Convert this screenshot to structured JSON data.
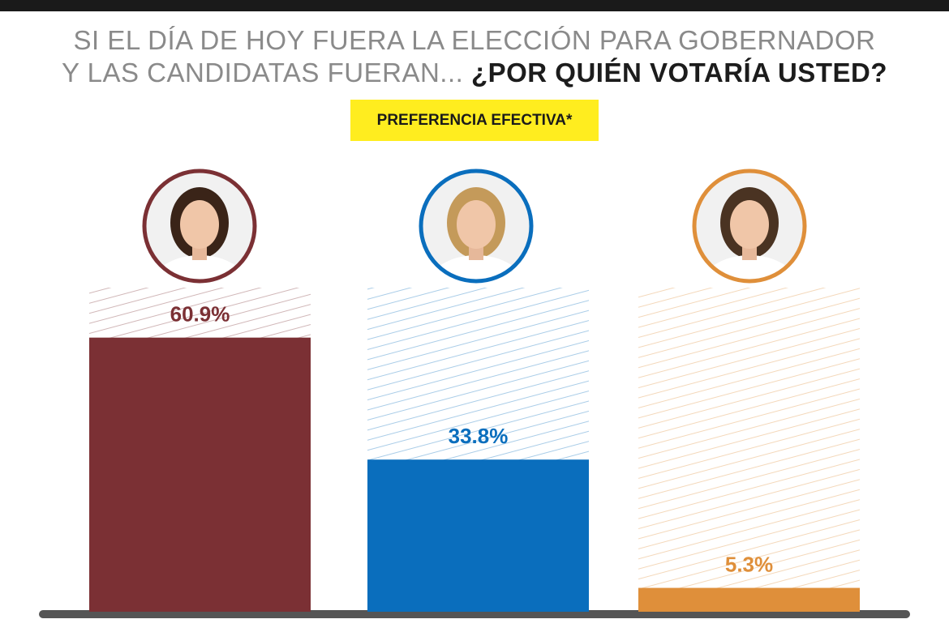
{
  "header": {
    "title_line1": "SI EL DÍA DE HOY FUERA LA ELECCIÓN PARA GOBERNADOR",
    "title_line2_regular": "Y LAS CANDIDATAS FUERAN... ",
    "title_line2_bold": "¿POR QUIÉN VOTARÍA USTED?",
    "badge": "PREFERENCIA EFECTIVA*"
  },
  "chart_data": {
    "type": "bar",
    "title": "SI EL DÍA DE HOY FUERA LA ELECCIÓN PARA GOBERNADOR Y LAS CANDIDATAS FUERAN... ¿POR QUIÉN VOTARÍA USTED?",
    "subtitle": "PREFERENCIA EFECTIVA*",
    "categories": [
      "",
      "",
      ""
    ],
    "values": [
      60.9,
      33.8,
      5.3
    ],
    "value_labels": [
      "60.9%",
      "33.8%",
      "5.3%"
    ],
    "colors": [
      "#7b3034",
      "#0a6ebd",
      "#df8f3a"
    ],
    "ylim": [
      0,
      72
    ],
    "grid": false,
    "legend": "none",
    "category_images": [
      "candidate-portrait",
      "candidate-portrait",
      "candidate-portrait"
    ]
  }
}
